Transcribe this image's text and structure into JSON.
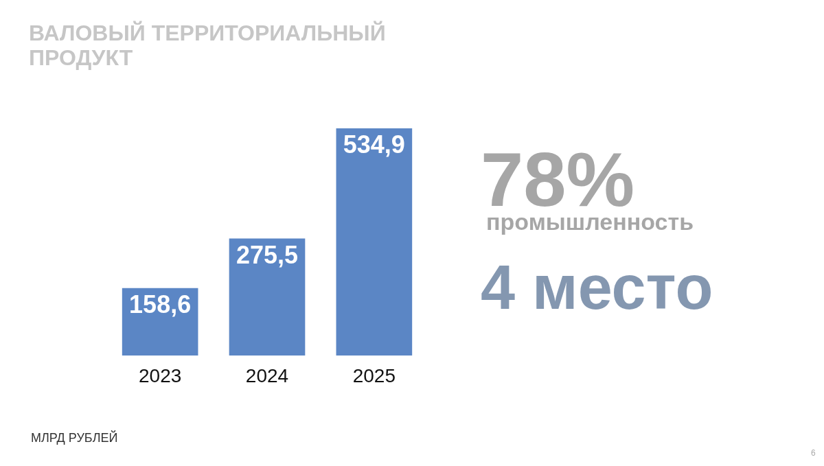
{
  "chart_data": {
    "type": "bar",
    "title": "ВАЛОВЫЙ ТЕРРИТОРИАЛЬНЫЙ ПРОДУКТ",
    "categories": [
      "2023",
      "2024",
      "2025"
    ],
    "values": [
      158.6,
      275.5,
      534.9
    ],
    "color": "#5b86c5",
    "value_labels": [
      "158,6",
      "275,5",
      "534,9"
    ],
    "tick_labels": "x",
    "annotations": [
      "78%",
      "промышленность",
      "4 место",
      "МЛРД РУБЛЕЙ",
      "6"
    ]
  }
}
